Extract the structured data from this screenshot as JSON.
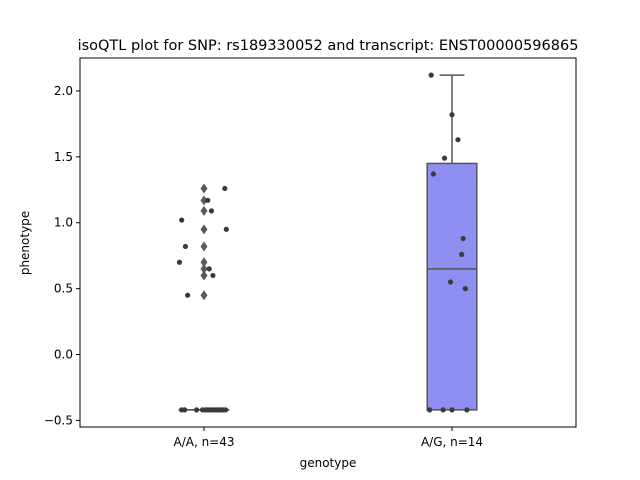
{
  "chart_data": {
    "type": "box",
    "title": "isoQTL plot for SNP: rs189330052 and transcript: ENST00000596865",
    "xlabel": "genotype",
    "ylabel": "phenotype",
    "ylim": [
      -0.55,
      2.25
    ],
    "yticks": [
      -0.5,
      0.0,
      0.5,
      1.0,
      1.5,
      2.0
    ],
    "ytick_labels": [
      "−0.5",
      "0.0",
      "0.5",
      "1.0",
      "1.5",
      "2.0"
    ],
    "categories": [
      "A/A, n=43",
      "A/G, n=14"
    ],
    "grid": false,
    "legend": "none",
    "colors": {
      "box": "#8f8ff2",
      "box_edge": "#555555",
      "point": "#3a3a3a",
      "outlier": "#5a5a5a"
    },
    "groups": [
      {
        "category": "A/A, n=43",
        "box": {
          "q1": -0.42,
          "median": -0.42,
          "q3": -0.42,
          "whisker_low": -0.42,
          "whisker_high": -0.42
        },
        "outliers": [
          1.26,
          1.17,
          1.09,
          0.95,
          0.82,
          0.7,
          0.65,
          0.6,
          0.45
        ],
        "points": [
          {
            "x": -0.3,
            "y": 1.02
          },
          {
            "x": -0.25,
            "y": 0.82
          },
          {
            "x": -0.33,
            "y": 0.7
          },
          {
            "x": -0.22,
            "y": 0.45
          },
          {
            "x": 0.05,
            "y": 1.17
          },
          {
            "x": 0.1,
            "y": 1.09
          },
          {
            "x": 0.28,
            "y": 1.26
          },
          {
            "x": 0.3,
            "y": 0.95
          },
          {
            "x": 0.07,
            "y": 0.65
          },
          {
            "x": 0.12,
            "y": 0.6
          },
          {
            "x": -0.3,
            "y": -0.42
          },
          {
            "x": -0.26,
            "y": -0.42
          },
          {
            "x": -0.1,
            "y": -0.42
          },
          {
            "x": -0.02,
            "y": -0.42
          },
          {
            "x": 0.02,
            "y": -0.42
          },
          {
            "x": 0.05,
            "y": -0.42
          },
          {
            "x": 0.08,
            "y": -0.42
          },
          {
            "x": 0.11,
            "y": -0.42
          },
          {
            "x": 0.14,
            "y": -0.42
          },
          {
            "x": 0.17,
            "y": -0.42
          },
          {
            "x": 0.2,
            "y": -0.42
          },
          {
            "x": 0.23,
            "y": -0.42
          },
          {
            "x": 0.26,
            "y": -0.42
          },
          {
            "x": 0.29,
            "y": -0.42
          }
        ]
      },
      {
        "category": "A/G, n=14",
        "box": {
          "q1": -0.42,
          "median": 0.65,
          "q3": 1.45,
          "whisker_low": -0.42,
          "whisker_high": 2.12
        },
        "outliers": [],
        "points": [
          {
            "x": -0.28,
            "y": 2.12
          },
          {
            "x": 0.0,
            "y": 1.82
          },
          {
            "x": 0.08,
            "y": 1.63
          },
          {
            "x": -0.1,
            "y": 1.49
          },
          {
            "x": -0.25,
            "y": 1.37
          },
          {
            "x": 0.15,
            "y": 0.88
          },
          {
            "x": 0.13,
            "y": 0.76
          },
          {
            "x": -0.02,
            "y": 0.55
          },
          {
            "x": 0.18,
            "y": 0.5
          },
          {
            "x": -0.3,
            "y": -0.42
          },
          {
            "x": -0.12,
            "y": -0.42
          },
          {
            "x": 0.0,
            "y": -0.42
          },
          {
            "x": 0.2,
            "y": -0.42
          }
        ]
      }
    ]
  }
}
